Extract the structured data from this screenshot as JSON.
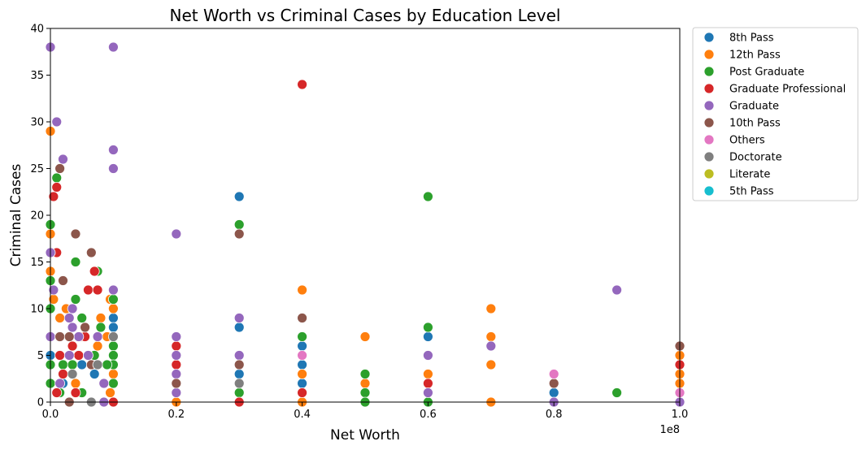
{
  "chart_data": {
    "type": "scatter",
    "title": "Net Worth vs Criminal Cases by Education Level",
    "xlabel": "Net Worth",
    "ylabel": "Criminal Cases",
    "x_offset_label": "1e8",
    "xlim": [
      0,
      100000000
    ],
    "ylim": [
      0,
      40
    ],
    "x_ticks": [
      0,
      20000000,
      40000000,
      60000000,
      80000000,
      100000000
    ],
    "x_tick_labels": [
      "0.0",
      "0.2",
      "0.4",
      "0.6",
      "0.8",
      "1.0"
    ],
    "y_ticks": [
      0,
      5,
      10,
      15,
      20,
      25,
      30,
      35,
      40
    ],
    "y_tick_labels": [
      "0",
      "5",
      "10",
      "15",
      "20",
      "25",
      "30",
      "35",
      "40"
    ],
    "grid": false,
    "legend_position": "outside-right",
    "series": [
      {
        "name": "8th Pass",
        "color": "#1f77b4",
        "points": [
          [
            0,
            5
          ],
          [
            2000000,
            2
          ],
          [
            5000000,
            4
          ],
          [
            10000000,
            9
          ],
          [
            10000000,
            8
          ],
          [
            30000000,
            22
          ],
          [
            30000000,
            8
          ],
          [
            30000000,
            3
          ],
          [
            40000000,
            6
          ],
          [
            40000000,
            4
          ],
          [
            40000000,
            2
          ],
          [
            60000000,
            7
          ],
          [
            70000000,
            0
          ],
          [
            80000000,
            1
          ],
          [
            3000000,
            0
          ],
          [
            7000000,
            3
          ],
          [
            100000000,
            0
          ]
        ]
      },
      {
        "name": "12th Pass",
        "color": "#ff7f0e",
        "points": [
          [
            0,
            29
          ],
          [
            0,
            18
          ],
          [
            0,
            14
          ],
          [
            500000,
            11
          ],
          [
            1500000,
            9
          ],
          [
            2500000,
            10
          ],
          [
            8000000,
            9
          ],
          [
            9500000,
            11
          ],
          [
            10000000,
            10
          ],
          [
            3000000,
            7
          ],
          [
            5000000,
            7
          ],
          [
            9000000,
            7
          ],
          [
            4000000,
            2
          ],
          [
            9500000,
            1
          ],
          [
            10000000,
            3
          ],
          [
            20000000,
            0
          ],
          [
            30000000,
            0
          ],
          [
            40000000,
            12
          ],
          [
            40000000,
            3
          ],
          [
            40000000,
            0
          ],
          [
            50000000,
            7
          ],
          [
            50000000,
            2
          ],
          [
            60000000,
            3
          ],
          [
            70000000,
            10
          ],
          [
            70000000,
            7
          ],
          [
            70000000,
            4
          ],
          [
            70000000,
            0
          ],
          [
            100000000,
            5
          ],
          [
            100000000,
            3
          ],
          [
            100000000,
            2
          ],
          [
            7500000,
            6
          ]
        ]
      },
      {
        "name": "Post Graduate",
        "color": "#2ca02c",
        "points": [
          [
            0,
            19
          ],
          [
            0,
            13
          ],
          [
            0,
            10
          ],
          [
            0,
            4
          ],
          [
            0,
            2
          ],
          [
            1000000,
            24
          ],
          [
            4000000,
            15
          ],
          [
            4000000,
            11
          ],
          [
            5000000,
            9
          ],
          [
            7500000,
            14
          ],
          [
            8000000,
            8
          ],
          [
            10000000,
            11
          ],
          [
            10000000,
            6
          ],
          [
            10000000,
            5
          ],
          [
            10000000,
            4
          ],
          [
            10000000,
            2
          ],
          [
            2000000,
            4
          ],
          [
            3500000,
            4
          ],
          [
            7000000,
            5
          ],
          [
            1500000,
            1
          ],
          [
            5000000,
            1
          ],
          [
            30000000,
            19
          ],
          [
            30000000,
            1
          ],
          [
            40000000,
            7
          ],
          [
            50000000,
            3
          ],
          [
            50000000,
            1
          ],
          [
            50000000,
            0
          ],
          [
            60000000,
            22
          ],
          [
            60000000,
            8
          ],
          [
            60000000,
            0
          ],
          [
            90000000,
            1
          ],
          [
            9000000,
            4
          ]
        ]
      },
      {
        "name": "Graduate Professional",
        "color": "#d62728",
        "points": [
          [
            500000,
            22
          ],
          [
            1000000,
            23
          ],
          [
            1000000,
            16
          ],
          [
            1500000,
            5
          ],
          [
            3500000,
            6
          ],
          [
            4500000,
            5
          ],
          [
            6000000,
            12
          ],
          [
            7500000,
            12
          ],
          [
            7000000,
            14
          ],
          [
            5500000,
            7
          ],
          [
            2000000,
            3
          ],
          [
            1000000,
            1
          ],
          [
            4000000,
            1
          ],
          [
            10000000,
            0
          ],
          [
            20000000,
            6
          ],
          [
            20000000,
            4
          ],
          [
            30000000,
            0
          ],
          [
            40000000,
            34
          ],
          [
            40000000,
            1
          ],
          [
            60000000,
            2
          ],
          [
            100000000,
            4
          ]
        ]
      },
      {
        "name": "Graduate",
        "color": "#9467bd",
        "points": [
          [
            0,
            38
          ],
          [
            0,
            16
          ],
          [
            0,
            7
          ],
          [
            500000,
            12
          ],
          [
            1000000,
            30
          ],
          [
            2000000,
            26
          ],
          [
            3500000,
            8
          ],
          [
            3500000,
            10
          ],
          [
            3000000,
            9
          ],
          [
            4500000,
            7
          ],
          [
            6000000,
            5
          ],
          [
            7500000,
            7
          ],
          [
            8500000,
            2
          ],
          [
            1500000,
            2
          ],
          [
            10000000,
            38
          ],
          [
            10000000,
            27
          ],
          [
            10000000,
            25
          ],
          [
            10000000,
            12
          ],
          [
            20000000,
            18
          ],
          [
            20000000,
            7
          ],
          [
            20000000,
            5
          ],
          [
            20000000,
            3
          ],
          [
            20000000,
            1
          ],
          [
            30000000,
            9
          ],
          [
            30000000,
            5
          ],
          [
            60000000,
            5
          ],
          [
            60000000,
            1
          ],
          [
            70000000,
            6
          ],
          [
            80000000,
            0
          ],
          [
            90000000,
            12
          ],
          [
            100000000,
            0
          ],
          [
            3000000,
            5
          ],
          [
            8500000,
            0
          ]
        ]
      },
      {
        "name": "10th Pass",
        "color": "#8c564b",
        "points": [
          [
            1500000,
            25
          ],
          [
            2000000,
            13
          ],
          [
            4000000,
            18
          ],
          [
            6500000,
            16
          ],
          [
            5500000,
            8
          ],
          [
            1500000,
            7
          ],
          [
            3000000,
            7
          ],
          [
            6500000,
            4
          ],
          [
            20000000,
            2
          ],
          [
            30000000,
            18
          ],
          [
            30000000,
            4
          ],
          [
            40000000,
            9
          ],
          [
            80000000,
            2
          ],
          [
            100000000,
            6
          ],
          [
            3000000,
            0
          ]
        ]
      },
      {
        "name": "Others",
        "color": "#e377c2",
        "points": [
          [
            40000000,
            5
          ],
          [
            80000000,
            3
          ],
          [
            100000000,
            1
          ]
        ]
      },
      {
        "name": "Doctorate",
        "color": "#7f7f7f",
        "points": [
          [
            3500000,
            3
          ],
          [
            7500000,
            4
          ],
          [
            10000000,
            7
          ],
          [
            30000000,
            2
          ],
          [
            6500000,
            0
          ]
        ]
      },
      {
        "name": "Literate",
        "color": "#bcbd22",
        "points": []
      },
      {
        "name": "5th Pass",
        "color": "#17becf",
        "points": []
      }
    ]
  }
}
